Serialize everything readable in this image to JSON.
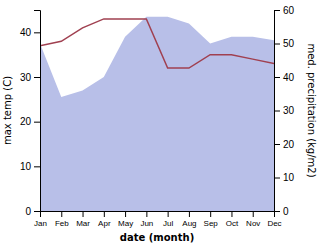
{
  "chart_data": {
    "type": "line",
    "x_label": "date (month)",
    "y_label": "max temp (C)",
    "y2_label": "med. precipitation (kg/m2)",
    "categories": [
      "Jan",
      "Feb",
      "Mar",
      "Apr",
      "May",
      "Jun",
      "Jul",
      "Aug",
      "Sep",
      "Oct",
      "Nov",
      "Dec"
    ],
    "series": [
      {
        "type": "area",
        "axis": "y2",
        "color": "#b8bfe8",
        "values": [
          50,
          34,
          36,
          40,
          52,
          58,
          58,
          56,
          50,
          52,
          52,
          51
        ]
      },
      {
        "type": "line",
        "color": "#a04050",
        "values": [
          37,
          38,
          41,
          43,
          43,
          43,
          32,
          32,
          35,
          35,
          34,
          33
        ]
      }
    ],
    "ylim": [
      0,
      45
    ],
    "yticks": [
      0,
      10,
      20,
      30,
      40
    ],
    "y2lim": [
      0,
      60
    ],
    "y2ticks": [
      0,
      10,
      20,
      30,
      40,
      50,
      60
    ]
  }
}
